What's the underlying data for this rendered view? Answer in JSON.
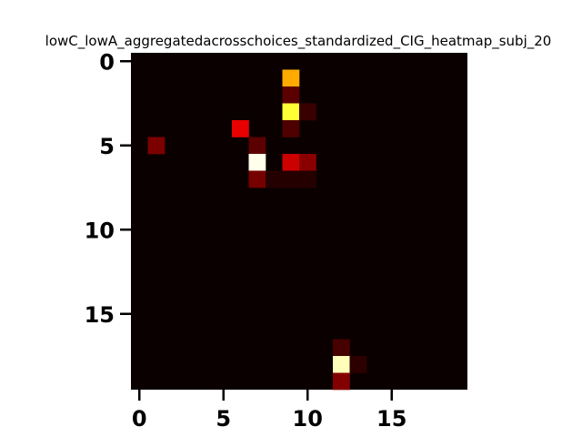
{
  "chart_data": {
    "type": "heatmap",
    "title": "lowC_lowA_aggregatedacrosschoices_standardized_CIG_heatmap_subj_20",
    "xlabel": "",
    "ylabel": "",
    "rows": 20,
    "cols": 20,
    "x_range": [
      -0.5,
      19.5
    ],
    "y_range": [
      -0.5,
      19.5
    ],
    "y_inverted": true,
    "x_ticks": [
      0,
      5,
      10,
      15
    ],
    "y_ticks": [
      0,
      5,
      10,
      15
    ],
    "x_tick_labels": [
      "0",
      "5",
      "10",
      "15"
    ],
    "y_tick_labels": [
      "0",
      "5",
      "10",
      "15"
    ],
    "colormap": "hot",
    "background_value": 0.0,
    "value_range": [
      0,
      1
    ],
    "grid": false,
    "legend": "none",
    "cells": [
      {
        "row": 1,
        "col": 9,
        "value": 0.62
      },
      {
        "row": 2,
        "col": 9,
        "value": 0.12
      },
      {
        "row": 3,
        "col": 9,
        "value": 0.8
      },
      {
        "row": 3,
        "col": 10,
        "value": 0.07
      },
      {
        "row": 4,
        "col": 6,
        "value": 0.33
      },
      {
        "row": 4,
        "col": 9,
        "value": 0.1
      },
      {
        "row": 5,
        "col": 1,
        "value": 0.17
      },
      {
        "row": 5,
        "col": 7,
        "value": 0.12
      },
      {
        "row": 6,
        "col": 7,
        "value": 0.98
      },
      {
        "row": 6,
        "col": 9,
        "value": 0.29
      },
      {
        "row": 6,
        "col": 10,
        "value": 0.19
      },
      {
        "row": 7,
        "col": 7,
        "value": 0.16
      },
      {
        "row": 7,
        "col": 8,
        "value": 0.04
      },
      {
        "row": 7,
        "col": 9,
        "value": 0.04
      },
      {
        "row": 7,
        "col": 10,
        "value": 0.04
      },
      {
        "row": 17,
        "col": 12,
        "value": 0.09
      },
      {
        "row": 18,
        "col": 12,
        "value": 0.93
      },
      {
        "row": 18,
        "col": 13,
        "value": 0.05
      },
      {
        "row": 19,
        "col": 12,
        "value": 0.18
      }
    ]
  }
}
